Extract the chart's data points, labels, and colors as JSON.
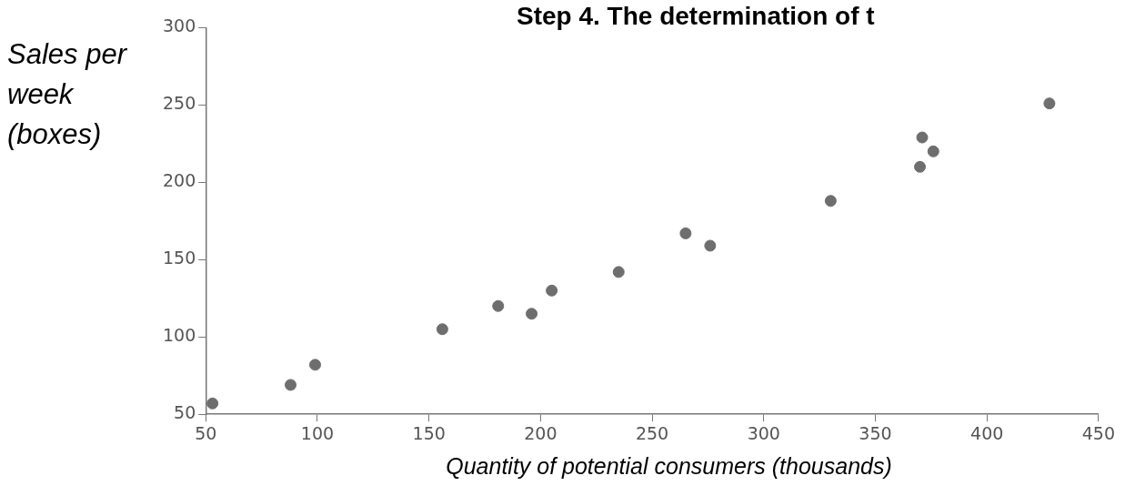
{
  "chart_data": {
    "type": "scatter",
    "title": "Step 4. The determination of t",
    "xlabel": "Quantity of potential consumers (thousands)",
    "ylabel": "Sales per week (boxes)",
    "x": [
      53,
      88,
      99,
      156,
      181,
      196,
      205,
      235,
      265,
      276,
      330,
      370,
      371,
      376,
      428
    ],
    "series": [
      {
        "color": "#6e6e6e",
        "values": [
          57,
          69,
          82,
          105,
          120,
          115,
          130,
          142,
          167,
          159,
          188,
          210,
          229,
          220,
          251
        ]
      }
    ],
    "xlim": [
      50,
      450
    ],
    "xticks": [
      50,
      100,
      150,
      200,
      250,
      300,
      350,
      400,
      450
    ],
    "ylim": [
      50,
      300
    ],
    "yticks": [
      50,
      100,
      150,
      200,
      250,
      300
    ],
    "grid": false,
    "legend": false,
    "marker": "circle"
  }
}
